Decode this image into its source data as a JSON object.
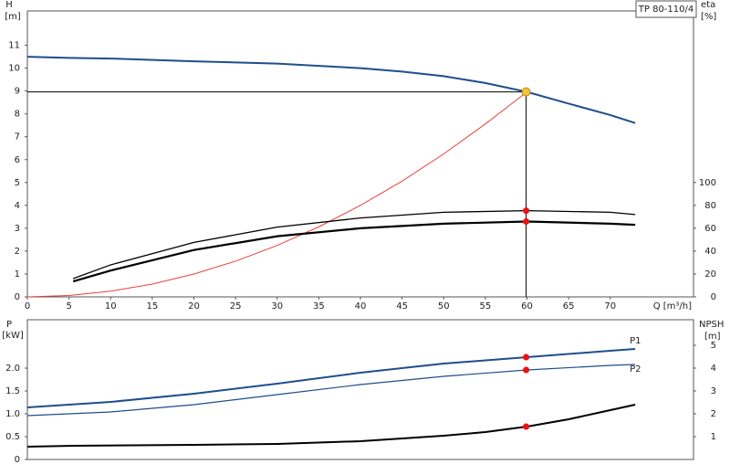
{
  "chart_data": [
    {
      "type": "line",
      "title": "TP 80-110/4",
      "ylabel": "H",
      "yunit": "[m]",
      "y2label": "eta",
      "y2unit": "[%]",
      "xlabel": "Q [m³/h]",
      "xlim": [
        0,
        80
      ],
      "xticks": [
        0,
        5,
        10,
        15,
        20,
        25,
        30,
        35,
        40,
        45,
        50,
        55,
        60,
        65,
        70
      ],
      "ylim": [
        0,
        12.5
      ],
      "yticks": [
        0,
        1,
        2,
        3,
        4,
        5,
        6,
        7,
        8,
        9,
        10,
        11
      ],
      "y2lim": [
        0,
        250
      ],
      "y2ticks": [
        0,
        20,
        40,
        60,
        80,
        100
      ],
      "series": [
        {
          "color": "#1f4e8c",
          "width": 2,
          "x": [
            0,
            5,
            10,
            20,
            30,
            40,
            45,
            50,
            55,
            60,
            65,
            70,
            73
          ],
          "values": [
            10.5,
            10.45,
            10.42,
            10.3,
            10.2,
            10.0,
            9.85,
            9.65,
            9.35,
            8.96,
            8.45,
            7.95,
            7.6
          ]
        },
        {
          "color": "#e8403a",
          "width": 1,
          "x": [
            0,
            5,
            10,
            15,
            20,
            25,
            30,
            35,
            40,
            45,
            50,
            55,
            60
          ],
          "values": [
            0,
            0.06,
            0.25,
            0.56,
            1.0,
            1.56,
            2.25,
            3.06,
            4.0,
            5.06,
            6.25,
            7.56,
            8.96
          ]
        },
        {
          "color": "#000000",
          "width": 1.3,
          "axis": "y2",
          "x": [
            5.5,
            10,
            20,
            30,
            40,
            50,
            60,
            70,
            73
          ],
          "values": [
            16,
            28,
            47.6,
            61,
            69,
            74,
            75.4,
            74,
            72
          ]
        },
        {
          "color": "#000000",
          "width": 2.2,
          "axis": "y2",
          "x": [
            5.5,
            10,
            20,
            30,
            40,
            50,
            60,
            70,
            73
          ],
          "values": [
            13.5,
            23,
            41,
            53,
            60,
            64,
            65.9,
            64,
            63
          ]
        }
      ],
      "points": [
        {
          "x": 59.9,
          "y": 75.4,
          "axis": "y2",
          "color": "#ee1111"
        },
        {
          "x": 59.9,
          "y": 65.9,
          "axis": "y2",
          "color": "#ee1111"
        }
      ],
      "operating_point": {
        "x": 59.9,
        "y": 8.96,
        "color": "#f5c242"
      }
    },
    {
      "type": "line",
      "ylabel": "P",
      "yunit": "[kW]",
      "y2label": "NPSH",
      "y2unit": "[m]",
      "xlim": [
        0,
        80
      ],
      "ylim": [
        0,
        3.06
      ],
      "yticks": [
        0,
        0.5,
        {
          "value": 1,
          "label": "1.0"
        },
        1.5,
        {
          "value": 2,
          "label": "2.0"
        }
      ],
      "y2lim": [
        0,
        6.12
      ],
      "y2ticks": [
        1,
        2,
        3,
        4,
        5
      ],
      "series": [
        {
          "name": "P1",
          "color": "#1f4e8c",
          "width": 2,
          "x": [
            0,
            10,
            20,
            30,
            40,
            50,
            60,
            70,
            73
          ],
          "values": [
            1.14,
            1.26,
            1.44,
            1.66,
            1.9,
            2.1,
            2.24,
            2.38,
            2.42
          ]
        },
        {
          "name": "P2",
          "color": "#1f4e8c",
          "width": 1.2,
          "x": [
            0,
            10,
            20,
            30,
            40,
            50,
            60,
            70,
            73
          ],
          "values": [
            0.96,
            1.04,
            1.2,
            1.42,
            1.64,
            1.82,
            1.96,
            2.06,
            2.08
          ]
        },
        {
          "color": "#000000",
          "width": 2,
          "axis": "y2",
          "x": [
            0,
            5.5,
            20,
            30,
            40,
            50,
            55,
            60,
            65,
            70,
            73
          ],
          "values": [
            0.56,
            0.6,
            0.64,
            0.68,
            0.8,
            1.04,
            1.2,
            1.44,
            1.76,
            2.16,
            2.4
          ]
        }
      ],
      "points": [
        {
          "x": 59.9,
          "y": 2.24,
          "color": "#ee1111"
        },
        {
          "x": 59.9,
          "y": 1.96,
          "color": "#ee1111"
        },
        {
          "x": 59.9,
          "y": 1.44,
          "axis": "y2",
          "color": "#ee1111"
        }
      ]
    }
  ]
}
